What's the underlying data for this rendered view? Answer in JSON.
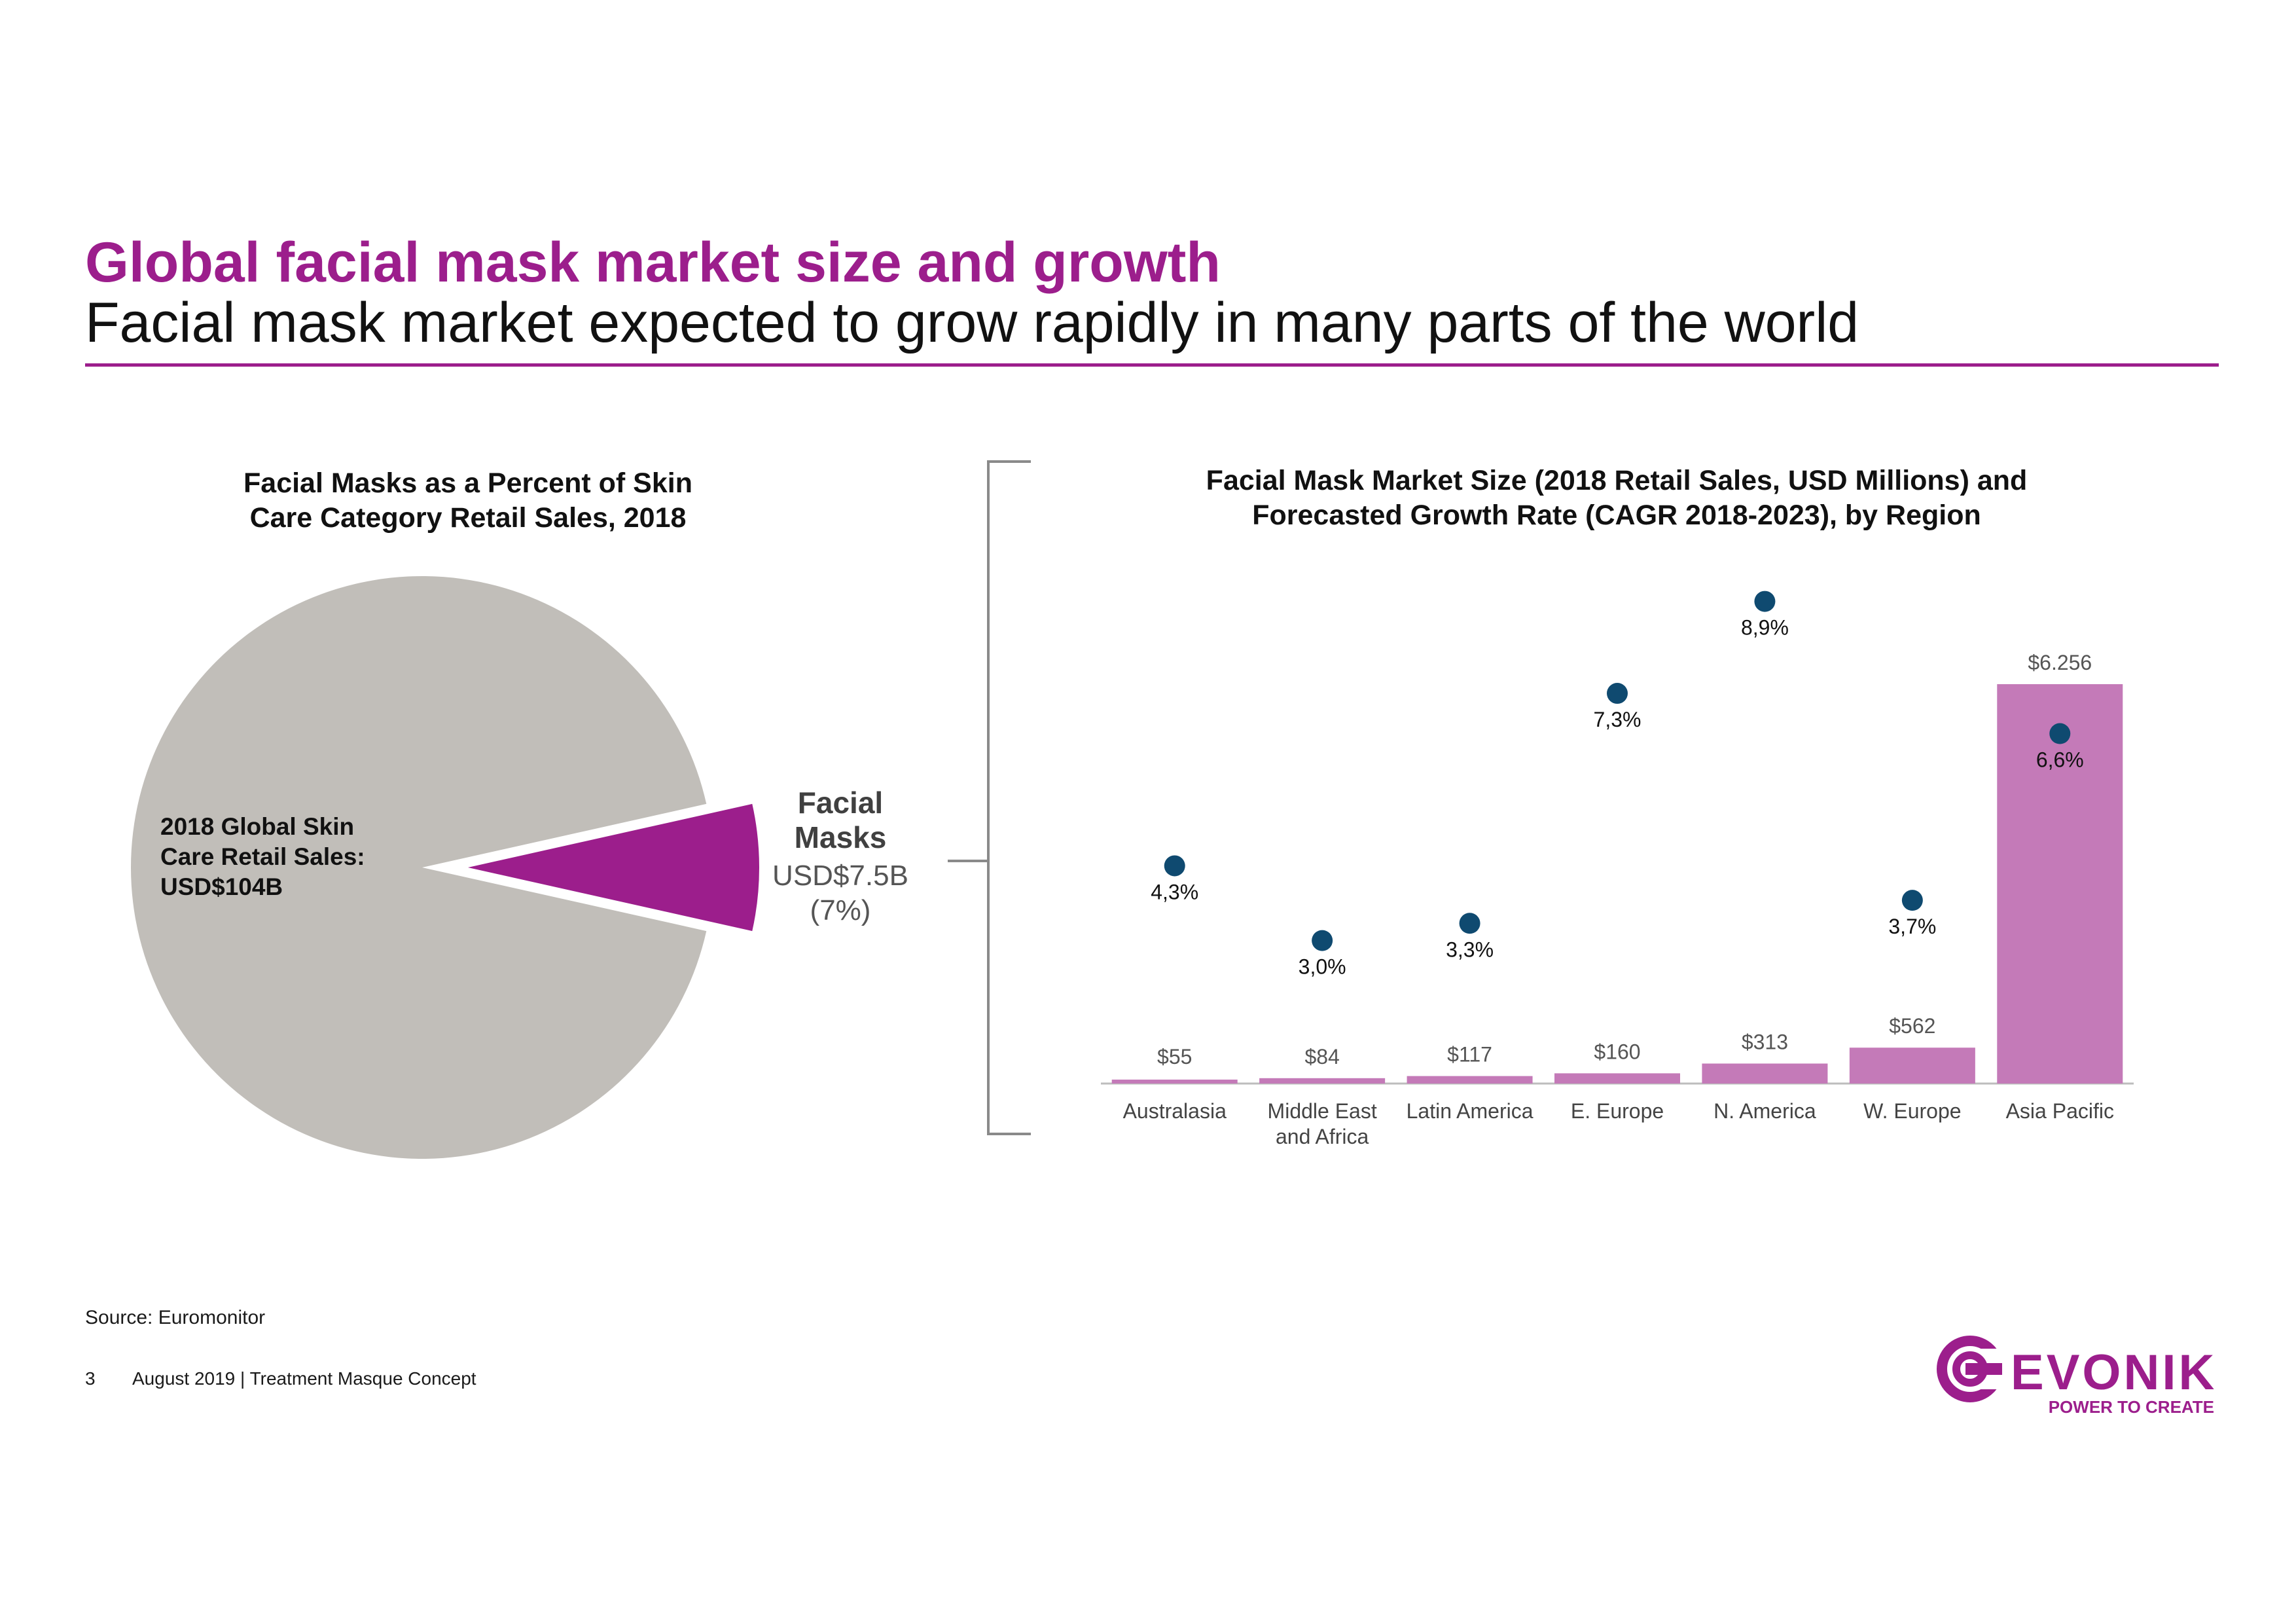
{
  "header": {
    "title": "Global facial mask market size and growth",
    "subtitle": "Facial mask market expected to grow rapidly in many parts of the world"
  },
  "colors": {
    "brand": "#9c1e8c",
    "pie_main": "#c1beb9",
    "bar_fill": "#c47ab8",
    "dot": "#0f4a70",
    "bracket": "#8a8a8a"
  },
  "chart_data": [
    {
      "type": "pie",
      "title": "Facial Masks as a Percent of Skin Care Category Retail Sales, 2018",
      "title_lines": [
        "Facial Masks as a Percent of Skin",
        "Care Category Retail Sales, 2018"
      ],
      "slices": [
        {
          "name": "2018 Global Skin Care Retail Sales",
          "label_lines": [
            "2018 Global Skin",
            "Care Retail Sales:",
            "USD$104B"
          ],
          "percent": 93
        },
        {
          "name": "Facial Masks",
          "label_lines": [
            "Facial",
            "Masks"
          ],
          "value_label": "USD$7.5B",
          "percent_label": "(7%)",
          "percent": 7,
          "exploded": true
        }
      ]
    },
    {
      "type": "bar",
      "title": "Facial Mask Market Size (2018 Retail Sales, USD Millions) and Forecasted Growth Rate (CAGR 2018-2023), by Region",
      "title_lines": [
        "Facial Mask Market Size (2018 Retail Sales, USD Millions) and",
        "Forecasted Growth Rate (CAGR 2018-2023), by Region"
      ],
      "categories": [
        [
          "Australasia"
        ],
        [
          "Middle East",
          "and Africa"
        ],
        [
          "Latin America"
        ],
        [
          "E. Europe"
        ],
        [
          "N. America"
        ],
        [
          "W. Europe"
        ],
        [
          "Asia Pacific"
        ]
      ],
      "series": [
        {
          "name": "2018 Retail Sales (USD Millions)",
          "type": "bar",
          "values": [
            55,
            84,
            117,
            160,
            313,
            562,
            6256
          ],
          "labels": [
            "$55",
            "$84",
            "$117",
            "$160",
            "$313",
            "$562",
            "$6.256"
          ]
        },
        {
          "name": "CAGR 2018-2023",
          "type": "scatter",
          "values": [
            4.3,
            3.0,
            3.3,
            7.3,
            8.9,
            3.7,
            6.6
          ],
          "labels": [
            "4,3%",
            "3,0%",
            "3,3%",
            "7,3%",
            "8,9%",
            "3,7%",
            "6,6%"
          ]
        }
      ],
      "ylim": [
        0,
        6256
      ],
      "cagr_range": [
        0,
        10
      ]
    }
  ],
  "footer": {
    "source": "Source: Euromonitor",
    "page_number": "3",
    "text": "August 2019 |  Treatment Masque Concept"
  },
  "logo": {
    "name": "EVONIK",
    "tagline": "POWER TO CREATE"
  }
}
